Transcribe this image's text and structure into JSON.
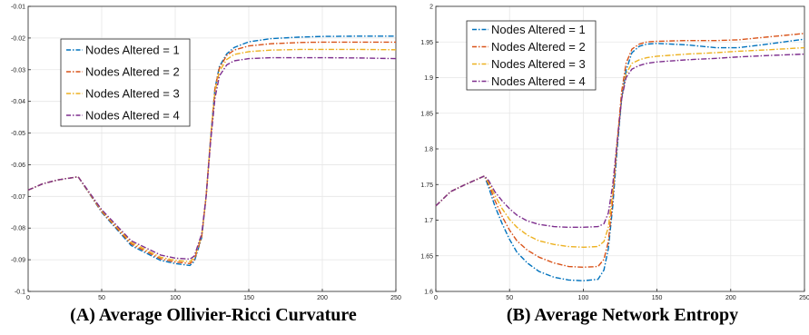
{
  "chart_data": [
    {
      "type": "line",
      "caption": "(A) Average Ollivier-Ricci Curvature",
      "xlim": [
        0,
        250
      ],
      "ylim": [
        -0.1,
        -0.01
      ],
      "xticks": [
        0,
        50,
        100,
        150,
        200,
        250
      ],
      "xtick_labels": [
        "0",
        "50",
        "100",
        "150",
        "200",
        "250"
      ],
      "yticks": [
        -0.1,
        -0.09,
        -0.08,
        -0.07,
        -0.06,
        -0.05,
        -0.04,
        -0.03,
        -0.02,
        -0.01
      ],
      "ytick_labels": [
        "-0.1",
        "-0.09",
        "-0.08",
        "-0.07",
        "-0.06",
        "-0.05",
        "-0.04",
        "-0.03",
        "-0.02",
        "-0.01"
      ],
      "grid": true,
      "legend_position": "top-left",
      "series": [
        {
          "name": "Nodes Altered = 1",
          "color": "#0072BD",
          "x": [
            0,
            10,
            20,
            34,
            50,
            70,
            90,
            100,
            110,
            113,
            118,
            121,
            124,
            127,
            130,
            135,
            140,
            150,
            165,
            185,
            200,
            225,
            250
          ],
          "y": [
            -0.068,
            -0.066,
            -0.0648,
            -0.0638,
            -0.075,
            -0.0855,
            -0.0902,
            -0.0912,
            -0.0918,
            -0.0905,
            -0.083,
            -0.07,
            -0.052,
            -0.036,
            -0.029,
            -0.025,
            -0.023,
            -0.0212,
            -0.0202,
            -0.0197,
            -0.0195,
            -0.0194,
            -0.0194
          ]
        },
        {
          "name": "Nodes Altered = 2",
          "color": "#D95319",
          "x": [
            0,
            10,
            20,
            34,
            50,
            70,
            90,
            100,
            110,
            113,
            118,
            121,
            124,
            127,
            130,
            135,
            140,
            150,
            165,
            185,
            200,
            225,
            250
          ],
          "y": [
            -0.068,
            -0.066,
            -0.0648,
            -0.0638,
            -0.0748,
            -0.085,
            -0.0897,
            -0.0907,
            -0.0912,
            -0.09,
            -0.0827,
            -0.07,
            -0.052,
            -0.036,
            -0.0295,
            -0.0255,
            -0.0238,
            -0.0225,
            -0.0218,
            -0.0214,
            -0.0213,
            -0.0213,
            -0.0213
          ]
        },
        {
          "name": "Nodes Altered = 3",
          "color": "#EDB120",
          "x": [
            0,
            10,
            20,
            34,
            50,
            70,
            90,
            100,
            110,
            113,
            118,
            121,
            124,
            127,
            130,
            135,
            140,
            150,
            165,
            185,
            200,
            225,
            250
          ],
          "y": [
            -0.068,
            -0.066,
            -0.0648,
            -0.0638,
            -0.0745,
            -0.0845,
            -0.0892,
            -0.0902,
            -0.0906,
            -0.0894,
            -0.0823,
            -0.07,
            -0.052,
            -0.037,
            -0.0305,
            -0.0268,
            -0.0252,
            -0.0243,
            -0.0238,
            -0.0236,
            -0.0236,
            -0.0236,
            -0.0237
          ]
        },
        {
          "name": "Nodes Altered = 4",
          "color": "#7E2F8E",
          "x": [
            0,
            10,
            20,
            34,
            50,
            70,
            90,
            100,
            110,
            113,
            118,
            121,
            124,
            127,
            130,
            135,
            140,
            150,
            165,
            185,
            200,
            225,
            250
          ],
          "y": [
            -0.068,
            -0.066,
            -0.0648,
            -0.0638,
            -0.0742,
            -0.084,
            -0.0885,
            -0.0895,
            -0.0898,
            -0.0888,
            -0.0818,
            -0.07,
            -0.053,
            -0.039,
            -0.032,
            -0.0285,
            -0.0272,
            -0.0265,
            -0.0262,
            -0.0262,
            -0.0262,
            -0.0263,
            -0.0265
          ]
        }
      ]
    },
    {
      "type": "line",
      "caption": "(B) Average Network Entropy",
      "xlim": [
        0,
        250
      ],
      "ylim": [
        1.6,
        2.0
      ],
      "xticks": [
        0,
        50,
        100,
        150,
        200,
        250
      ],
      "xtick_labels": [
        "0",
        "50",
        "100",
        "150",
        "200",
        "250"
      ],
      "yticks": [
        1.6,
        1.65,
        1.7,
        1.75,
        1.8,
        1.85,
        1.9,
        1.95,
        2.0
      ],
      "ytick_labels": [
        "1.6",
        "1.65",
        "1.7",
        "1.75",
        "1.8",
        "1.85",
        "1.9",
        "1.95",
        "2"
      ],
      "grid": true,
      "legend_position": "top-left",
      "series": [
        {
          "name": "Nodes Altered = 1",
          "color": "#0072BD",
          "x": [
            0,
            10,
            20,
            33,
            36,
            40,
            45,
            50,
            55,
            62,
            70,
            80,
            90,
            100,
            110,
            114,
            117,
            120,
            123,
            126,
            129,
            133,
            138,
            143,
            150,
            170,
            190,
            205,
            225,
            250
          ],
          "y": [
            1.72,
            1.74,
            1.75,
            1.762,
            1.745,
            1.72,
            1.695,
            1.673,
            1.655,
            1.64,
            1.628,
            1.62,
            1.616,
            1.615,
            1.617,
            1.63,
            1.66,
            1.72,
            1.8,
            1.87,
            1.91,
            1.935,
            1.944,
            1.947,
            1.948,
            1.946,
            1.942,
            1.942,
            1.947,
            1.954
          ]
        },
        {
          "name": "Nodes Altered = 2",
          "color": "#D95319",
          "x": [
            0,
            10,
            20,
            33,
            36,
            40,
            45,
            50,
            55,
            62,
            70,
            80,
            90,
            100,
            110,
            114,
            117,
            120,
            123,
            126,
            129,
            133,
            138,
            143,
            150,
            170,
            190,
            205,
            225,
            250
          ],
          "y": [
            1.72,
            1.74,
            1.75,
            1.762,
            1.75,
            1.728,
            1.705,
            1.686,
            1.671,
            1.658,
            1.648,
            1.64,
            1.635,
            1.634,
            1.635,
            1.645,
            1.67,
            1.73,
            1.81,
            1.88,
            1.92,
            1.94,
            1.947,
            1.95,
            1.951,
            1.952,
            1.952,
            1.953,
            1.957,
            1.962
          ]
        },
        {
          "name": "Nodes Altered = 3",
          "color": "#EDB120",
          "x": [
            0,
            10,
            20,
            33,
            36,
            40,
            45,
            50,
            55,
            62,
            70,
            80,
            90,
            100,
            110,
            114,
            117,
            120,
            123,
            126,
            129,
            133,
            138,
            143,
            150,
            170,
            190,
            205,
            225,
            250
          ],
          "y": [
            1.72,
            1.74,
            1.75,
            1.762,
            1.752,
            1.735,
            1.716,
            1.701,
            1.69,
            1.679,
            1.671,
            1.666,
            1.663,
            1.662,
            1.663,
            1.67,
            1.69,
            1.74,
            1.81,
            1.87,
            1.905,
            1.92,
            1.925,
            1.928,
            1.93,
            1.933,
            1.935,
            1.937,
            1.939,
            1.942
          ]
        },
        {
          "name": "Nodes Altered = 4",
          "color": "#7E2F8E",
          "x": [
            0,
            10,
            20,
            33,
            36,
            40,
            45,
            50,
            55,
            62,
            70,
            80,
            90,
            100,
            110,
            114,
            117,
            120,
            123,
            126,
            129,
            133,
            138,
            143,
            150,
            170,
            190,
            205,
            225,
            250
          ],
          "y": [
            1.72,
            1.74,
            1.75,
            1.762,
            1.755,
            1.74,
            1.727,
            1.716,
            1.707,
            1.699,
            1.694,
            1.691,
            1.69,
            1.69,
            1.691,
            1.695,
            1.71,
            1.75,
            1.81,
            1.87,
            1.9,
            1.912,
            1.917,
            1.92,
            1.922,
            1.925,
            1.927,
            1.929,
            1.931,
            1.933
          ]
        }
      ]
    }
  ]
}
